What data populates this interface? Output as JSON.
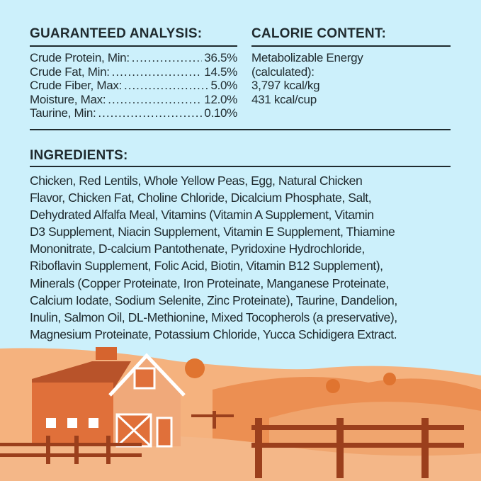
{
  "guaranteed_analysis": {
    "title": "GUARANTEED ANALYSIS:",
    "rows": [
      {
        "label": "Crude Protein, Min:",
        "value": "36.5%"
      },
      {
        "label": "Crude Fat, Min:",
        "value": "14.5%"
      },
      {
        "label": "Crude Fiber, Max:",
        "value": "5.0%"
      },
      {
        "label": "Moisture, Max:",
        "value": "12.0%"
      },
      {
        "label": "Taurine, Min:",
        "value": "0.10%"
      }
    ]
  },
  "calorie_content": {
    "title": "CALORIE CONTENT:",
    "lines": [
      "Metabolizable Energy",
      "(calculated):",
      "3,797 kcal/kg",
      "431 kcal/cup"
    ]
  },
  "ingredients": {
    "title": "INGREDIENTS:",
    "lines": [
      "Chicken, Red Lentils, Whole Yellow Peas, Egg, Natural Chicken",
      "Flavor, Chicken Fat, Choline Chloride, Dicalcium Phosphate, Salt,",
      "Dehydrated Alfalfa Meal, Vitamins (Vitamin A Supplement, Vitamin",
      "D3 Supplement, Niacin Supplement, Vitamin E Supplement, Thiamine",
      "Mononitrate, D-calcium Pantothenate, Pyridoxine Hydrochloride,",
      "Riboflavin Supplement, Folic Acid, Biotin, Vitamin B12 Supplement),",
      "Minerals (Copper Proteinate, Iron Proteinate, Manganese Proteinate,",
      "Calcium Iodate, Sodium Selenite, Zinc Proteinate), Taurine, Dandelion,",
      "Inulin, Salmon Oil, DL-Methionine, Mixed Tocopherols (a preservative),",
      "Magnesium Proteinate, Potassium Chloride, Yucca Schidigera Extract."
    ]
  },
  "colors": {
    "background": "#ccf0fb",
    "text": "#1f2a2e",
    "orange": "#e8793a",
    "light_orange": "#f5b27e"
  }
}
